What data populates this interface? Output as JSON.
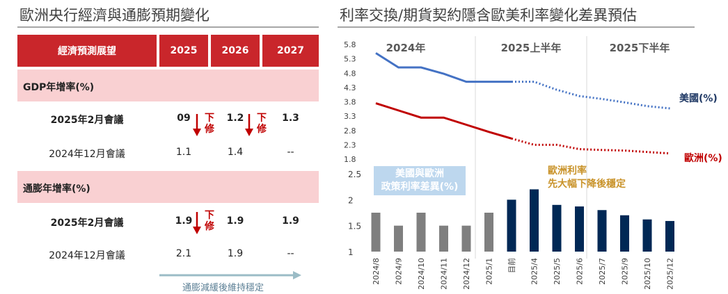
{
  "left": {
    "title": "歐洲央行經濟與通膨預期變化",
    "table": {
      "header": [
        "經濟預測展望",
        "2025",
        "2026",
        "2027"
      ],
      "groups": [
        {
          "label": "GDP年增率(%)",
          "rows": [
            {
              "label": "2025年2月會議",
              "values": [
                "09",
                "1.2",
                "1.3"
              ],
              "bold": true
            },
            {
              "label": "2024年12月會議",
              "values": [
                "1.1",
                "1.4",
                "--"
              ],
              "bold": false
            }
          ]
        },
        {
          "label": "通膨年增率(%)",
          "rows": [
            {
              "label": "2025年2月會議",
              "values": [
                "1.9",
                "1.9",
                "1.9"
              ],
              "bold": true
            },
            {
              "label": "2024年12月會議",
              "values": [
                "2.1",
                "1.9",
                "--"
              ],
              "bold": false
            }
          ]
        }
      ],
      "revision_marker": "下修"
    },
    "note": "通膨減緩後維持穩定",
    "colors": {
      "header": "#c9262b",
      "band": "#f9d0d2",
      "revision": "#c00000",
      "note_arrow": "#9bbcc6"
    }
  },
  "right": {
    "title": "利率交換/期貨契約隱含歐美利率變化差異預估",
    "period_labels": [
      "2024年",
      "2025上半年",
      "2025下半年"
    ],
    "line_legend": {
      "us": "美國(%)",
      "eu": "歐洲(%)"
    },
    "bar_callout": [
      "美國與歐洲",
      "政策利率差異(%)"
    ],
    "eu_callout": [
      "歐洲利率",
      "先大幅下降後穩定"
    ],
    "colors": {
      "us": "#4472c4",
      "eu": "#c00000",
      "bar_past": "#7f7f7f",
      "bar_future": "#002855",
      "callout_bg": "#bdd7ee",
      "eu_callout": "#c9932a"
    }
  },
  "chart_data": [
    {
      "type": "line",
      "x": [
        "2024/8",
        "2024/9",
        "2024/10",
        "2024/11",
        "2024/12",
        "2025/1",
        "目前",
        "2025/4",
        "2025/5",
        "2025/6",
        "2025/7",
        "2025/9",
        "2025/10",
        "2025/12"
      ],
      "yticks": [
        "5.8",
        "5.3",
        "4.8",
        "4.3",
        "3.8",
        "3.3",
        "2.8",
        "2.3",
        "1.8"
      ],
      "ylim": [
        1.8,
        5.8
      ],
      "series": [
        {
          "name": "美國(%)",
          "values": [
            5.5,
            5.0,
            5.0,
            4.78,
            4.5,
            4.5,
            4.5,
            4.5,
            4.22,
            4.0,
            3.9,
            3.78,
            3.65,
            3.57
          ]
        },
        {
          "name": "歐洲(%)",
          "values": [
            3.75,
            3.5,
            3.25,
            3.25,
            3.0,
            2.75,
            2.52,
            2.3,
            2.3,
            2.15,
            2.12,
            2.1,
            2.05,
            2.0
          ]
        }
      ],
      "solid_until_index": 6
    },
    {
      "type": "bar",
      "categories": [
        "2024/8",
        "2024/9",
        "2024/10",
        "2024/11",
        "2024/12",
        "2025/1",
        "目前",
        "2025/4",
        "2025/5",
        "2025/6",
        "2025/7",
        "2025/9",
        "2025/10",
        "2025/12"
      ],
      "values": [
        1.75,
        1.5,
        1.75,
        1.5,
        1.5,
        1.75,
        2.0,
        2.2,
        1.9,
        1.87,
        1.8,
        1.7,
        1.62,
        1.59
      ],
      "yticks": [
        "2.5",
        "2",
        "1.5",
        "1"
      ],
      "ylim": [
        1,
        2.5
      ],
      "forecast_from_index": 6
    }
  ]
}
